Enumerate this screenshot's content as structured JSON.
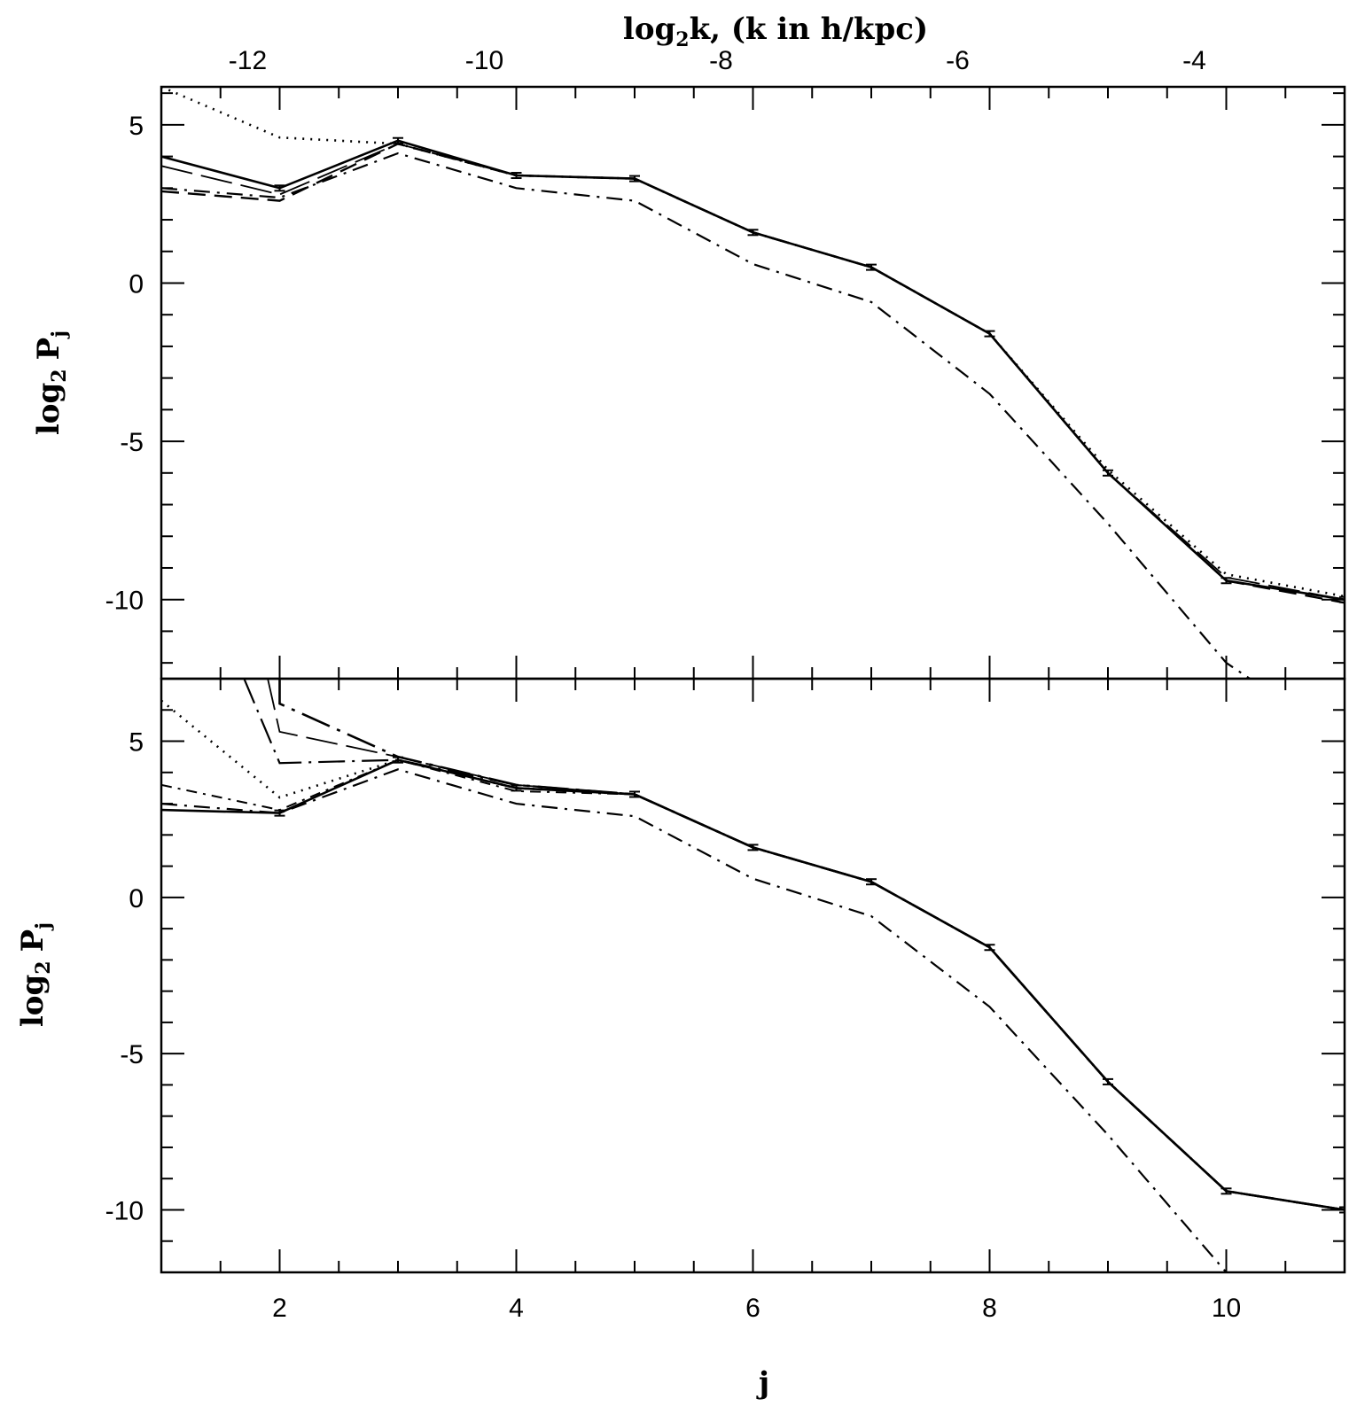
{
  "chart_data": [
    {
      "type": "line",
      "panel": "top",
      "xlabel": "",
      "ylabel_main": "log",
      "ylabel_sub": "2",
      "ylabel_tail": "P",
      "ylabel_sub2": "j",
      "top_axis_label_main": "log",
      "top_axis_label_sub": "2",
      "top_axis_label_tail": "k,  (k in h/kpc)",
      "top_axis_ticks": [
        "-12",
        "-10",
        "-8",
        "-6",
        "-4"
      ],
      "top_axis_tick_values": [
        -12,
        -10,
        -8,
        -6,
        -4
      ],
      "xlim": [
        1,
        11
      ],
      "ylim": [
        -12.5,
        6.2
      ],
      "yticks": [
        "5",
        "0",
        "-5",
        "-10"
      ],
      "ytick_values": [
        5,
        0,
        -5,
        -10
      ],
      "grid": false,
      "series": [
        {
          "style": "solid",
          "x": [
            1,
            2,
            3,
            4,
            5,
            6,
            7,
            8,
            9,
            10,
            11
          ],
          "y": [
            4.0,
            3.0,
            4.5,
            3.4,
            3.3,
            1.6,
            0.5,
            -1.6,
            -6.0,
            -9.4,
            -10.0
          ]
        },
        {
          "style": "dotted",
          "x": [
            1,
            2,
            3,
            4,
            5,
            6,
            7,
            8,
            9,
            10,
            11
          ],
          "y": [
            6.2,
            4.6,
            4.4,
            3.4,
            3.3,
            1.6,
            0.5,
            -1.6,
            -5.9,
            -9.2,
            -9.9
          ]
        },
        {
          "style": "dashed",
          "x": [
            1,
            2,
            3,
            4,
            5,
            6,
            7,
            8,
            9,
            10,
            11
          ],
          "y": [
            2.9,
            2.6,
            4.4,
            3.4,
            3.3,
            1.6,
            0.5,
            -1.6,
            -6.0,
            -9.4,
            -10.1
          ]
        },
        {
          "style": "long-dash",
          "x": [
            1,
            2,
            3,
            4,
            5,
            6,
            7,
            8,
            9,
            10,
            11
          ],
          "y": [
            3.7,
            2.8,
            4.4,
            3.4,
            3.3,
            1.6,
            0.5,
            -1.6,
            -6.0,
            -9.3,
            -10.0
          ]
        },
        {
          "style": "dash-dot",
          "x": [
            1,
            2,
            3,
            4,
            5,
            6,
            7,
            8,
            9,
            10,
            10.2
          ],
          "y": [
            3.0,
            2.7,
            4.1,
            3.0,
            2.6,
            0.6,
            -0.6,
            -3.5,
            -7.6,
            -12.0,
            -12.5
          ]
        }
      ]
    },
    {
      "type": "line",
      "panel": "bottom",
      "xlabel": "j",
      "ylabel_main": "log",
      "ylabel_sub": "2",
      "ylabel_tail": "P",
      "ylabel_sub2": "j",
      "xticks": [
        "2",
        "4",
        "6",
        "8",
        "10"
      ],
      "xtick_values": [
        2,
        4,
        6,
        8,
        10
      ],
      "xlim": [
        1,
        11
      ],
      "ylim": [
        -12,
        7
      ],
      "yticks": [
        "5",
        "0",
        "-5",
        "-10"
      ],
      "ytick_values": [
        5,
        0,
        -5,
        -10
      ],
      "grid": false,
      "series": [
        {
          "style": "solid",
          "x": [
            1,
            2,
            3,
            4,
            5,
            6,
            7,
            8,
            9,
            10,
            11
          ],
          "y": [
            2.8,
            2.7,
            4.4,
            3.5,
            3.3,
            1.6,
            0.5,
            -1.6,
            -5.9,
            -9.4,
            -10.0
          ]
        },
        {
          "style": "dotted",
          "x": [
            1,
            2,
            3,
            4,
            5,
            6,
            7,
            8,
            9,
            10,
            11
          ],
          "y": [
            6.3,
            3.2,
            4.4,
            3.5,
            3.3,
            1.6,
            0.5,
            -1.6,
            -5.9,
            -9.4,
            -10.0
          ]
        },
        {
          "style": "dash-dot-short",
          "x": [
            1,
            2,
            3,
            4,
            5,
            6,
            7,
            8,
            9,
            10,
            11
          ],
          "y": [
            3.6,
            2.8,
            4.4,
            3.4,
            3.3,
            1.6,
            0.5,
            -1.6,
            -5.9,
            -9.4,
            -10.0
          ]
        },
        {
          "style": "long-dash-dot",
          "x": [
            1.7,
            2,
            3,
            4,
            5,
            6,
            7,
            8,
            9,
            10,
            11
          ],
          "y": [
            7.0,
            4.3,
            4.4,
            3.6,
            3.3,
            1.6,
            0.5,
            -1.6,
            -5.9,
            -9.4,
            -10.0
          ]
        },
        {
          "style": "long-dash",
          "x": [
            1.9,
            2,
            3,
            4,
            5,
            6,
            7,
            8,
            9,
            10,
            11
          ],
          "y": [
            7.0,
            5.3,
            4.5,
            3.6,
            3.3,
            1.6,
            0.5,
            -1.6,
            -5.9,
            -9.4,
            -10.0
          ]
        },
        {
          "style": "long-dash-dot-heavy",
          "x": [
            2,
            2,
            3,
            4,
            5,
            6,
            7,
            8,
            9,
            10,
            11
          ],
          "y": [
            7.0,
            6.2,
            4.5,
            3.6,
            3.3,
            1.6,
            0.5,
            -1.6,
            -5.9,
            -9.4,
            -10.0
          ]
        },
        {
          "style": "dash-dot",
          "x": [
            1,
            2,
            3,
            4,
            5,
            6,
            7,
            8,
            9,
            10
          ],
          "y": [
            3.0,
            2.7,
            4.1,
            3.0,
            2.6,
            0.6,
            -0.6,
            -3.5,
            -7.6,
            -12.0
          ]
        }
      ]
    }
  ]
}
